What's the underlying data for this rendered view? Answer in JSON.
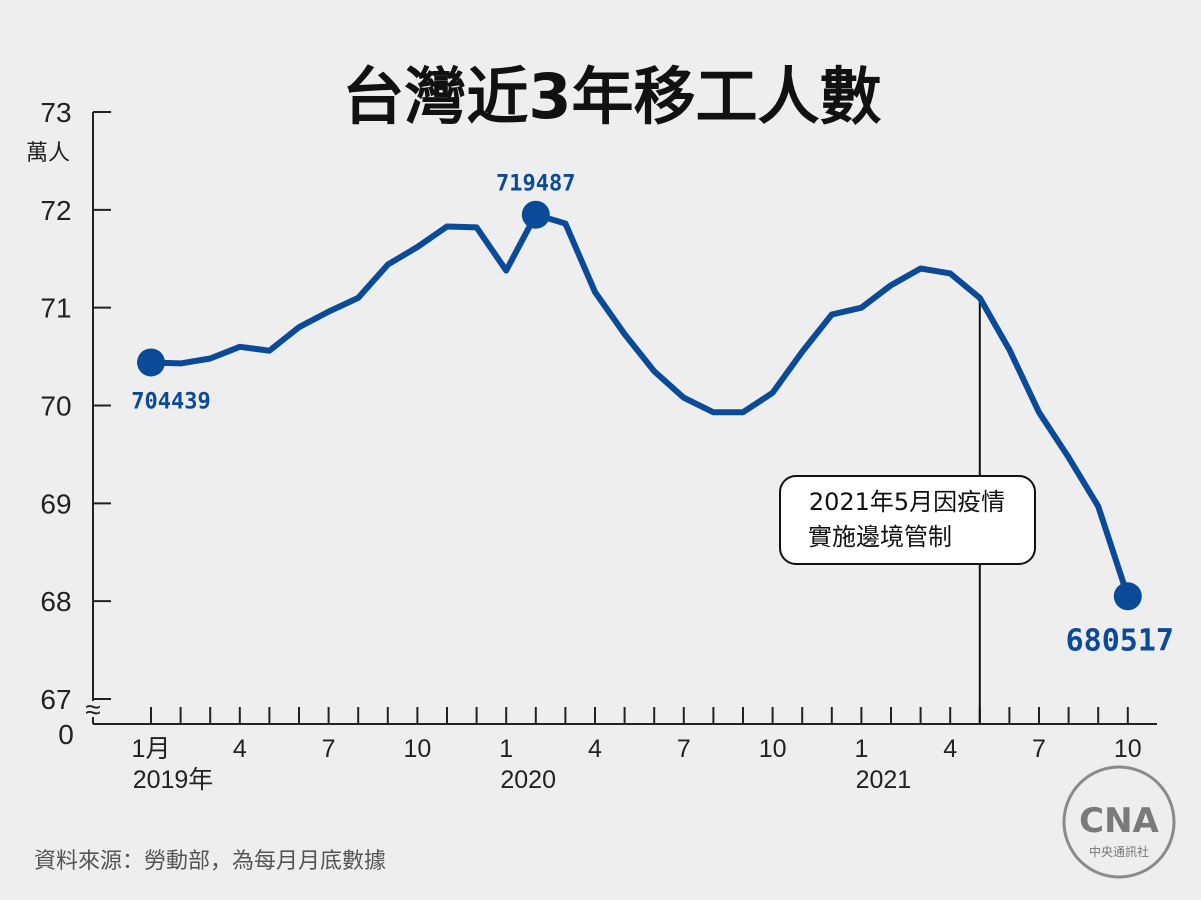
{
  "title": "台灣近3年移工人數",
  "source": "資料來源：勞動部，為每月月底數據",
  "logo_text": "中央通訊社",
  "logo_mark": "CNA",
  "accent_color": "#0b4a98",
  "annotation": {
    "line1": "2021年5月因疫情",
    "line2": "實施邊境管制"
  },
  "chart_data": {
    "type": "line",
    "title": "台灣近3年移工人數",
    "ylabel": "萬人",
    "ylim": [
      67,
      73
    ],
    "y_ticks": [
      "73",
      "72",
      "71",
      "70",
      "69",
      "68",
      "67"
    ],
    "y_axis_zero_label": "0",
    "y_axis_break": "≈",
    "x_tick_labels": [
      "1月",
      "4",
      "7",
      "10",
      "1",
      "4",
      "7",
      "10",
      "1",
      "4",
      "7",
      "10"
    ],
    "x_year_labels": [
      "2019年",
      "2020",
      "2021"
    ],
    "x": [
      "2019-01",
      "2019-02",
      "2019-03",
      "2019-04",
      "2019-05",
      "2019-06",
      "2019-07",
      "2019-08",
      "2019-09",
      "2019-10",
      "2019-11",
      "2019-12",
      "2020-01",
      "2020-02",
      "2020-03",
      "2020-04",
      "2020-05",
      "2020-06",
      "2020-07",
      "2020-08",
      "2020-09",
      "2020-10",
      "2020-11",
      "2020-12",
      "2021-01",
      "2021-02",
      "2021-03",
      "2021-04",
      "2021-05",
      "2021-06",
      "2021-07",
      "2021-08",
      "2021-09",
      "2021-10"
    ],
    "series": [
      {
        "values": [
          70.44,
          70.43,
          70.48,
          70.6,
          70.56,
          70.8,
          70.96,
          71.1,
          71.44,
          71.62,
          71.83,
          71.82,
          71.38,
          71.95,
          71.86,
          71.16,
          70.73,
          70.35,
          70.08,
          69.93,
          69.93,
          70.13,
          70.55,
          70.93,
          71.0,
          71.23,
          71.4,
          71.35,
          71.1,
          70.57,
          69.93,
          69.47,
          68.97,
          68.05
        ]
      }
    ],
    "data_labels": [
      {
        "month": "2019-01",
        "text": "704439"
      },
      {
        "month": "2020-02",
        "text": "719487"
      },
      {
        "month": "2021-10",
        "text": "680517"
      }
    ],
    "annotation_month": "2021-05",
    "grid": false
  }
}
